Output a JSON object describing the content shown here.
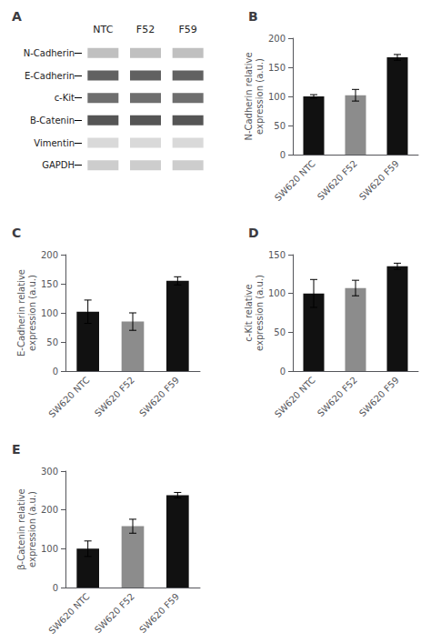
{
  "chart_data": [
    {
      "type": "blot",
      "title": "A",
      "categories": [
        "NTC",
        "F52",
        "F59"
      ],
      "series": [
        {
          "name": "N-Cadherin",
          "color": "#b0b0b0"
        },
        {
          "name": "E-Cadherin",
          "color": "#3a3a3a"
        },
        {
          "name": "c-Kit",
          "color": "#4a4a4a"
        },
        {
          "name": "B-Catenin",
          "color": "#2a2a2a"
        },
        {
          "name": "Vimentin",
          "color": "#d0d0d0"
        },
        {
          "name": "GAPDH",
          "color": "#c0c0c0"
        }
      ]
    },
    {
      "type": "bar",
      "title": "B",
      "categories": [
        "SW620 NTC",
        "SW620 F52",
        "SW620 F59"
      ],
      "values": [
        100,
        102,
        167
      ],
      "errors": [
        3,
        10,
        5
      ],
      "colors": [
        "#111111",
        "#8c8c8c",
        "#111111"
      ],
      "ylabel": "N-Cadherin relative\nexpression (a.u.)",
      "ylim": [
        0,
        200
      ],
      "yticks": [
        0,
        50,
        100,
        150,
        200
      ],
      "grid": false
    },
    {
      "type": "bar",
      "title": "C",
      "categories": [
        "SW620 NTC",
        "SW620 F52",
        "SW620 F59"
      ],
      "values": [
        102,
        85,
        155
      ],
      "errors": [
        20,
        15,
        7
      ],
      "colors": [
        "#111111",
        "#8c8c8c",
        "#111111"
      ],
      "ylabel": "E-Cadherin relative\nexpression (a.u.)",
      "ylim": [
        0,
        200
      ],
      "yticks": [
        0,
        50,
        100,
        150,
        200
      ],
      "grid": false
    },
    {
      "type": "bar",
      "title": "D",
      "categories": [
        "SW620 NTC",
        "SW620 F52",
        "SW620 F59"
      ],
      "values": [
        100,
        107,
        135
      ],
      "errors": [
        18,
        10,
        4
      ],
      "colors": [
        "#111111",
        "#8c8c8c",
        "#111111"
      ],
      "ylabel": "c-Kit relative\nexpression (a.u.)",
      "ylim": [
        0,
        150
      ],
      "yticks": [
        0,
        50,
        100,
        150
      ],
      "grid": false
    },
    {
      "type": "bar",
      "title": "E",
      "categories": [
        "SW620 NTC",
        "SW620 F52",
        "SW620 F59"
      ],
      "values": [
        100,
        158,
        238
      ],
      "errors": [
        20,
        18,
        7
      ],
      "colors": [
        "#111111",
        "#8c8c8c",
        "#111111"
      ],
      "ylabel": "β-Catenin relative\nexpression (a.u.)",
      "ylim": [
        0,
        300
      ],
      "yticks": [
        0,
        100,
        200,
        300
      ],
      "grid": false
    }
  ]
}
